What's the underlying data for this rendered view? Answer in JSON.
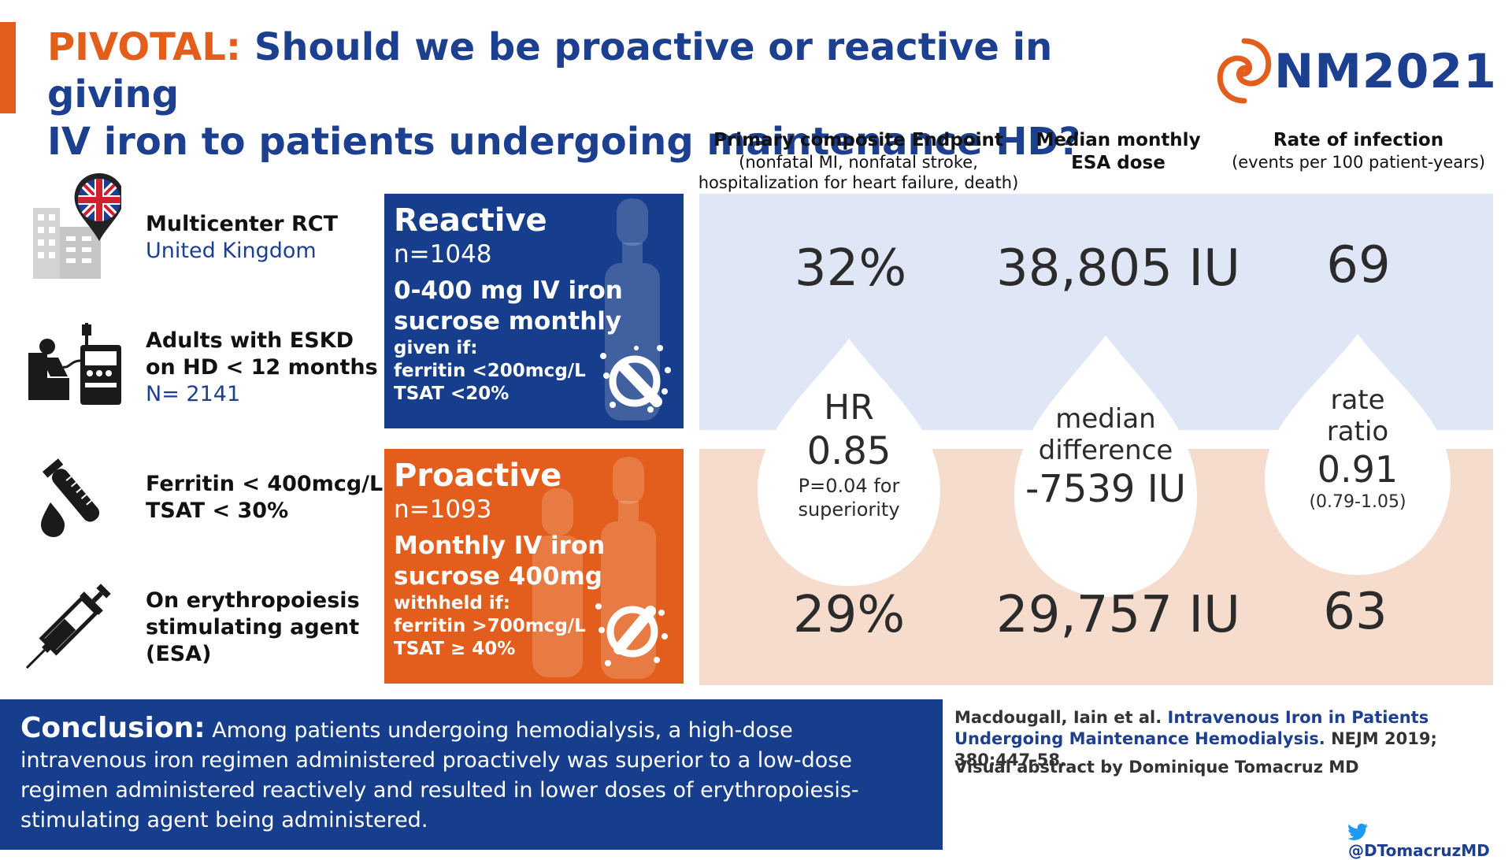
{
  "title": {
    "highlight": "PIVOTAL:",
    "line1": "Should we be proactive or reactive in giving",
    "line2": "IV iron to patients undergoing maintenance HD?"
  },
  "logo": {
    "text": "NM2021"
  },
  "study": [
    {
      "line1": "Multicenter RCT",
      "line2": "United Kingdom",
      "icon": "uk-location-building-icon"
    },
    {
      "line1": "Adults with ESKD",
      "line2": "on HD < 12 months",
      "line3": "N= 2141",
      "icon": "dialysis-patient-icon"
    },
    {
      "line1": "Ferritin < 400mcg/L",
      "line2": "TSAT < 30%",
      "icon": "test-tube-drop-icon"
    },
    {
      "line1": "On erythropoiesis",
      "line2": "stimulating agent",
      "line3": "(ESA)",
      "icon": "syringe-icon"
    }
  ],
  "arms": {
    "reactive": {
      "label": "Reactive",
      "n": "n=1048",
      "regimen": "0-400 mg IV iron sucrose monthly",
      "cond_label": "given if:",
      "cond1": "ferritin <200mcg/L",
      "cond2": "TSAT <20%"
    },
    "proactive": {
      "label": "Proactive",
      "n": "n=1093",
      "regimen": "Monthly IV iron sucrose 400mg",
      "cond_label": "withheld if:",
      "cond1": "ferritin >700mcg/L",
      "cond2": "TSAT ≥ 40%"
    }
  },
  "columns": [
    {
      "title": "Primary composite Endpoint",
      "sub1": "(nonfatal MI, nonfatal stroke,",
      "sub2": "hospitalization for heart failure, death)"
    },
    {
      "title": "Median monthly",
      "title2": "ESA dose"
    },
    {
      "title": "Rate of infection",
      "sub1": "(events per 100 patient-years)"
    }
  ],
  "results": {
    "reactive": [
      "32%",
      "38,805 IU",
      "69"
    ],
    "proactive": [
      "29%",
      "29,757 IU",
      "63"
    ]
  },
  "comparisons": [
    {
      "label1": "HR",
      "value": "0.85",
      "note1": "P=0.04 for",
      "note2": "superiority"
    },
    {
      "label1": "median",
      "label2": "difference",
      "value": "-7539 IU"
    },
    {
      "label1": "rate",
      "label2": "ratio",
      "value": "0.91",
      "note1": "(0.79-1.05)"
    }
  ],
  "conclusion": {
    "label": "Conclusion:",
    "text": "Among patients undergoing hemodialysis, a high-dose intravenous iron regimen administered proactively was superior to a low-dose regimen administered reactively and resulted in lower doses of erythropoiesis-stimulating agent being administered."
  },
  "citation": {
    "authors": "Macdougall, Iain et al.",
    "title": "Intravenous Iron in Patients Undergoing Maintenance Hemodialysis.",
    "journal": "NEJM 2019; 380:447-58."
  },
  "byline": "Visual abstract by Dominique Tomacruz MD",
  "handle": "@DTomacruzMD",
  "colors": {
    "blue": "#163e8c",
    "orange": "#e35d1c",
    "blue_panel": "#dfe6f6",
    "orange_panel": "#f6dccc"
  }
}
